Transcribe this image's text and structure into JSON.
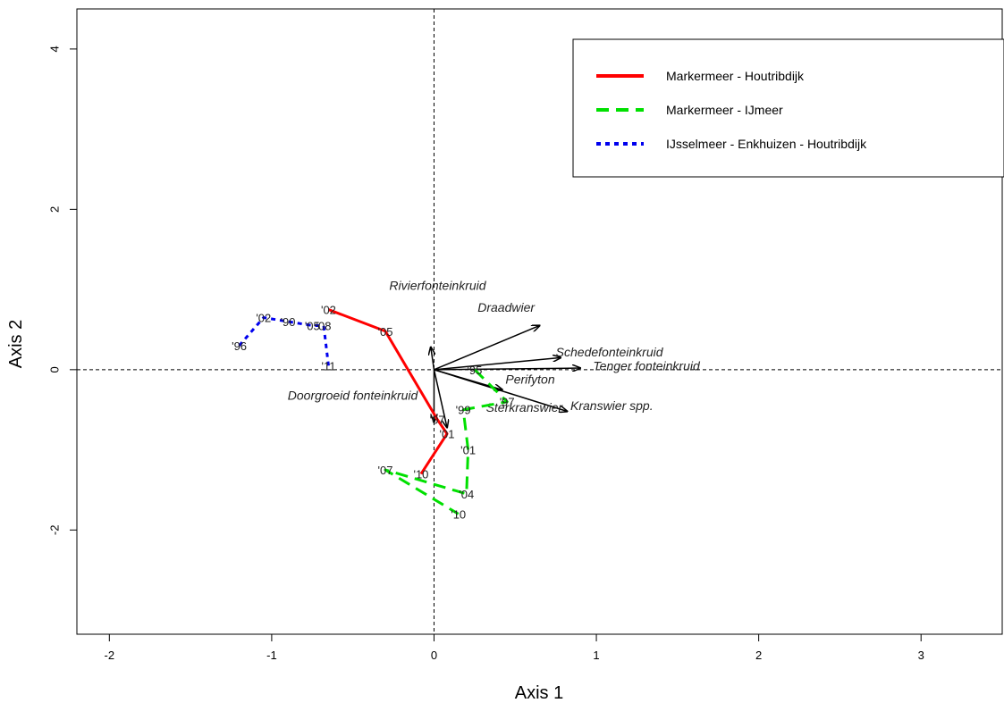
{
  "chart_data": {
    "type": "scatter",
    "xlabel": "Axis 1",
    "ylabel": "Axis 2",
    "xlim": [
      -2.2,
      3.5
    ],
    "ylim": [
      -3.3,
      4.5
    ],
    "x_ticks": [
      -2,
      -1,
      0,
      1,
      2,
      3
    ],
    "y_ticks": [
      -2,
      0,
      2,
      4
    ],
    "reference_lines": {
      "x": 0,
      "y": 0
    },
    "grid": false,
    "legend_position": "top-right",
    "series": [
      {
        "name": "Markermeer - Houtribdijk",
        "color": "#ff0000",
        "line_style": "solid",
        "points": [
          {
            "label": "'02",
            "x": -0.65,
            "y": 0.75
          },
          {
            "label": "'05",
            "x": -0.3,
            "y": 0.48
          },
          {
            "label": "'07",
            "x": 0.02,
            "y": -0.62
          },
          {
            "label": "'01",
            "x": 0.08,
            "y": -0.8
          },
          {
            "label": "'10",
            "x": -0.08,
            "y": -1.3
          }
        ]
      },
      {
        "name": "Markermeer - IJmeer",
        "color": "#00e000",
        "line_style": "dashed",
        "points": [
          {
            "label": "'95",
            "x": 0.25,
            "y": 0.0
          },
          {
            "label": "'97",
            "x": 0.45,
            "y": -0.4
          },
          {
            "label": "'99",
            "x": 0.18,
            "y": -0.5
          },
          {
            "label": "'01",
            "x": 0.21,
            "y": -1.0
          },
          {
            "label": "'04",
            "x": 0.2,
            "y": -1.55
          },
          {
            "label": "'07",
            "x": -0.3,
            "y": -1.25
          },
          {
            "label": "'10",
            "x": 0.15,
            "y": -1.8
          }
        ]
      },
      {
        "name": "IJsselmeer - Enkhuizen - Houtribdijk",
        "color": "#0000ee",
        "line_style": "dotted",
        "points": [
          {
            "label": "'96",
            "x": -1.2,
            "y": 0.3
          },
          {
            "label": "'02",
            "x": -1.05,
            "y": 0.65
          },
          {
            "label": "'90",
            "x": -0.9,
            "y": 0.6
          },
          {
            "label": "'05",
            "x": -0.75,
            "y": 0.55
          },
          {
            "label": "'08",
            "x": -0.68,
            "y": 0.55
          },
          {
            "label": "'11",
            "x": -0.65,
            "y": 0.05
          }
        ]
      }
    ],
    "vectors": [
      {
        "label": "Draadwier",
        "x": 0.65,
        "y": 0.55
      },
      {
        "label": "Schedefonteinkruid",
        "x": 0.78,
        "y": 0.15
      },
      {
        "label": "Tenger fonteinkruid",
        "x": 0.9,
        "y": 0.02
      },
      {
        "label": "Perifyton",
        "x": 0.42,
        "y": -0.25
      },
      {
        "label": "Kranswier spp.",
        "x": 0.82,
        "y": -0.52
      },
      {
        "label": "Rivierfonteinkruid",
        "x": -0.02,
        "y": 0.28
      },
      {
        "label": "Doorgroeid fonteinkruid",
        "x": 0.0,
        "y": -0.65
      },
      {
        "label": "Sterkranswier",
        "x": 0.08,
        "y": -0.72
      }
    ]
  }
}
